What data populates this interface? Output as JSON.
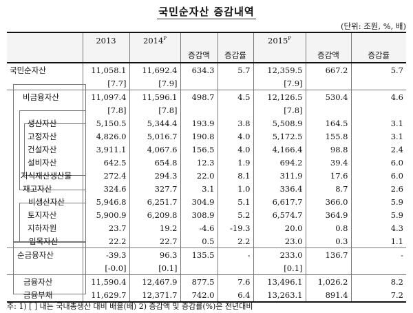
{
  "title": "국민순자산 증감내역",
  "unit": "(단위: 조원, %, 배)",
  "header": {
    "y2013": "2013",
    "y2014": "2014",
    "y2014_sup": "P",
    "chg_amt": "증감액",
    "chg_rate": "증감률",
    "y2015": "2015",
    "y2015_sup": "P",
    "chg_amt2": "증감액",
    "chg_rate2": "증감률"
  },
  "rows": [
    {
      "label": "국민순자산",
      "v2013": "11,058.1",
      "v2014": "11,692.4",
      "c14": "634.3",
      "r14": "5.7",
      "v2015": "12,359.5",
      "c15": "667.2",
      "r15": "5.7"
    },
    {
      "sub": true,
      "v2013": "[7.7]",
      "v2014": "[7.9]",
      "v2015": "[7.9]"
    },
    {
      "label": "비금융자산",
      "v2013": "11,097.4",
      "v2014": "11,596.1",
      "c14": "498.7",
      "r14": "4.5",
      "v2015": "12,126.5",
      "c15": "530.4",
      "r15": "4.6"
    },
    {
      "sub": true,
      "v2013": "[7.8]",
      "v2014": "[7.8]",
      "v2015": "[7.8]"
    },
    {
      "label": "생산자산",
      "v2013": "5,150.5",
      "v2014": "5,344.4",
      "c14": "193.9",
      "r14": "3.8",
      "v2015": "5,508.9",
      "c15": "164.5",
      "r15": "3.1"
    },
    {
      "label": "고정자산",
      "v2013": "4,826.0",
      "v2014": "5,016.7",
      "c14": "190.8",
      "r14": "4.0",
      "v2015": "5,172.5",
      "c15": "155.8",
      "r15": "3.1"
    },
    {
      "label": "건설자산",
      "v2013": "3,911.1",
      "v2014": "4,067.6",
      "c14": "156.5",
      "r14": "4.0",
      "v2015": "4,166.4",
      "c15": "98.8",
      "r15": "2.4"
    },
    {
      "label": "설비자산",
      "v2013": "642.5",
      "v2014": "654.8",
      "c14": "12.3",
      "r14": "1.9",
      "v2015": "694.2",
      "c15": "39.4",
      "r15": "6.0"
    },
    {
      "label": "지식재산생산물",
      "v2013": "272.4",
      "v2014": "294.3",
      "c14": "22.0",
      "r14": "8.1",
      "v2015": "311.9",
      "c15": "17.6",
      "r15": "6.0"
    },
    {
      "label": "재고자산",
      "v2013": "324.6",
      "v2014": "327.7",
      "c14": "3.1",
      "r14": "1.0",
      "v2015": "336.4",
      "c15": "8.7",
      "r15": "2.6"
    },
    {
      "label": "비생산자산",
      "v2013": "5,946.8",
      "v2014": "6,251.7",
      "c14": "304.9",
      "r14": "5.1",
      "v2015": "6,617.7",
      "c15": "366.0",
      "r15": "5.9"
    },
    {
      "label": "토지자산",
      "v2013": "5,900.9",
      "v2014": "6,209.8",
      "c14": "308.9",
      "r14": "5.2",
      "v2015": "6,574.7",
      "c15": "364.9",
      "r15": "5.9"
    },
    {
      "label": "지하자원",
      "v2013": "23.7",
      "v2014": "19.2",
      "c14": "-4.6",
      "r14": "-19.3",
      "v2015": "20.0",
      "c15": "0.8",
      "r15": "4.3"
    },
    {
      "label": "입목자산",
      "v2013": "22.2",
      "v2014": "22.7",
      "c14": "0.5",
      "r14": "2.2",
      "v2015": "23.0",
      "c15": "0.3",
      "r15": "1.1"
    },
    {
      "label": "순금융자산",
      "v2013": "-39.3",
      "v2014": "96.3",
      "c14": "135.5",
      "r14": "-",
      "v2015": "233.0",
      "c15": "136.7",
      "r15": "-"
    },
    {
      "sub": true,
      "v2013": "[-0.0]",
      "v2014": "[0.1]",
      "v2015": "[0.1]"
    },
    {
      "label": "금융자산",
      "v2013": "11,590.4",
      "v2014": "12,467.9",
      "c14": "877.5",
      "r14": "7.6",
      "v2015": "13,496.1",
      "c15": "1,026.2",
      "r15": "8.2"
    },
    {
      "label": "금융부채",
      "v2013": "11,629.7",
      "v2014": "12,371.7",
      "c14": "742.0",
      "r14": "6.4",
      "v2015": "13,263.1",
      "c15": "891.4",
      "r15": "7.2"
    }
  ],
  "footnote": "주: 1) [  ] 내는 국내총생산 대비 배율(배)   2) 증감액 및 증감률(%)은 전년대비"
}
